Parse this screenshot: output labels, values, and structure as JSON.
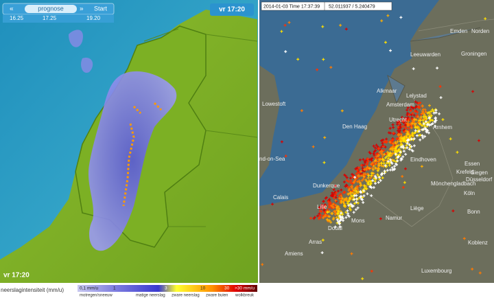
{
  "left_map": {
    "controls": {
      "prev": "«",
      "mode": "prognose",
      "next": "»",
      "start": "Start"
    },
    "timeline": [
      "16.25",
      "17.25",
      "19.20"
    ],
    "time_badge": "vr 17:20",
    "time_corner": "vr 17:20",
    "legend": {
      "title": "neerslagintensiteit (mm/u)",
      "scale": [
        "0,1 mm/u",
        "1",
        "3",
        "10",
        "30",
        ">30 mm/u"
      ],
      "classes": [
        "motregen/sneeuw",
        "matige neerslag",
        "zware neerslag",
        "zware buien",
        "wolkbreuk"
      ]
    }
  },
  "right_map": {
    "info": {
      "time": "2014-01-03 Time 17:37:39",
      "coords": "52.011937 / 5.240479"
    },
    "cities": [
      "Norden",
      "Emden",
      "Groningen",
      "Leeuwarden",
      "Alkmaar",
      "Amsterdam",
      "Lelystad",
      "Den Haag",
      "Utrecht",
      "Arnhem",
      "Lowestoft",
      "nd-on-Sea",
      "Eindhoven",
      "Krefeld",
      "Essen",
      "Düsseldorf",
      "Mönchengladbach",
      "Köln",
      "Bonn",
      "Dunkerque",
      "Calais",
      "Lille",
      "Douai",
      "Arras",
      "Mons",
      "Namur",
      "Liège",
      "Siegen",
      "Koblenz",
      "Amiens",
      "Luxembourg"
    ]
  }
}
